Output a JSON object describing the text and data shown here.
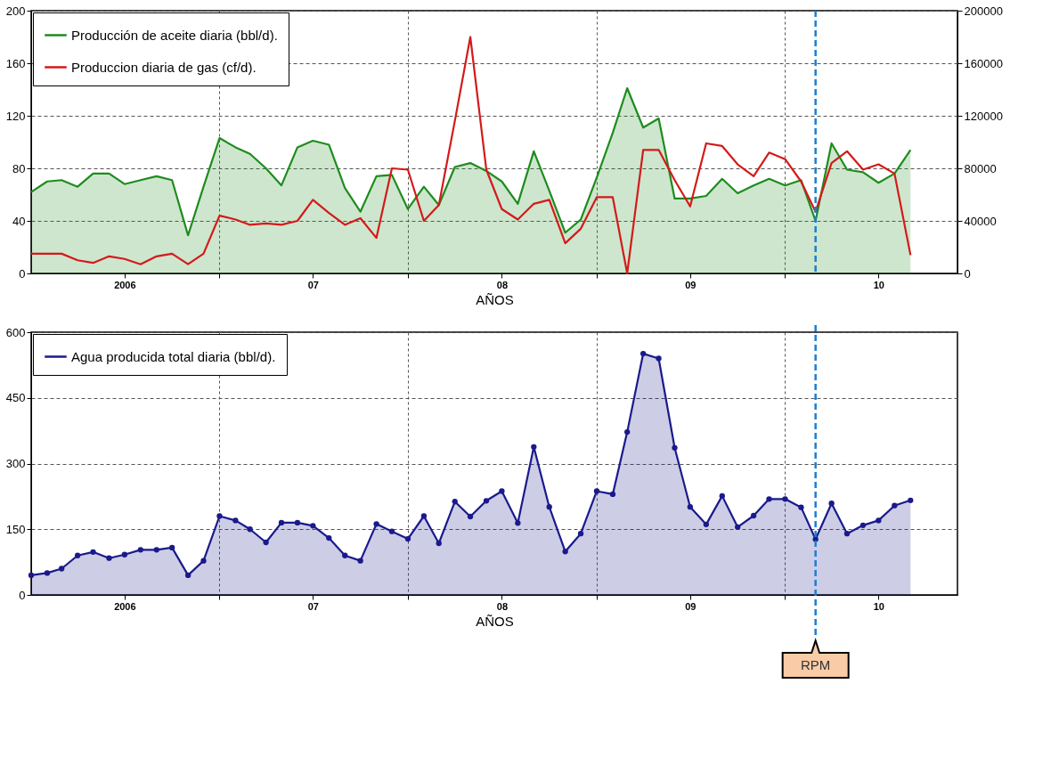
{
  "chart_data": [
    {
      "type": "area",
      "xlabel": "AÑOS",
      "legend": "top left",
      "grid": true,
      "x": [
        "2006-01",
        "2006-02",
        "2006-03",
        "2006-04",
        "2006-05",
        "2006-06",
        "2006-07",
        "2006-08",
        "2006-09",
        "2006-10",
        "2006-11",
        "2006-12",
        "2007-01",
        "2007-02",
        "2007-03",
        "2007-04",
        "2007-05",
        "2007-06",
        "2007-07",
        "2007-08",
        "2007-09",
        "2007-10",
        "2007-11",
        "2007-12",
        "2008-01",
        "2008-02",
        "2008-03",
        "2008-04",
        "2008-05",
        "2008-06",
        "2008-07",
        "2008-08",
        "2008-09",
        "2008-10",
        "2008-11",
        "2008-12",
        "2009-01",
        "2009-02",
        "2009-03",
        "2009-04",
        "2009-05",
        "2009-06",
        "2009-07",
        "2009-08",
        "2009-09",
        "2009-10",
        "2009-11",
        "2009-12",
        "2010-01",
        "2010-02",
        "2010-03",
        "2010-04",
        "2010-05",
        "2010-06",
        "2010-07",
        "2010-08",
        "2010-09"
      ],
      "xlim": [
        "2006-01",
        "2010-12"
      ],
      "xticks": [
        {
          "value": "2006-07",
          "label": "2006"
        },
        {
          "value": "2007-01",
          "label": null
        },
        {
          "value": "2007-07",
          "label": "07"
        },
        {
          "value": "2008-01",
          "label": null
        },
        {
          "value": "2008-07",
          "label": "08"
        },
        {
          "value": "2009-01",
          "label": null
        },
        {
          "value": "2009-07",
          "label": "09"
        },
        {
          "value": "2010-01",
          "label": null
        },
        {
          "value": "2010-07",
          "label": "10"
        }
      ],
      "ylim": [
        0,
        200
      ],
      "yticks": [
        0,
        40,
        80,
        120,
        160,
        200
      ],
      "y2lim": [
        0,
        200000
      ],
      "y2ticks": [
        0,
        40000,
        80000,
        120000,
        160000,
        200000
      ],
      "series": [
        {
          "name": "Producción de aceite diaria (bbl/d).",
          "color": "#1e8c1e",
          "values": [
            62,
            70,
            71,
            66,
            76,
            76,
            68,
            71,
            74,
            71,
            29,
            66,
            103,
            96,
            91,
            80,
            67,
            96,
            101,
            98,
            65,
            47,
            74,
            75,
            49,
            66,
            52,
            81,
            84,
            78,
            70,
            53,
            93,
            63,
            31,
            41,
            73,
            107,
            141,
            111,
            118,
            57,
            57,
            59,
            72,
            61,
            67,
            72,
            67,
            71,
            40,
            99,
            79,
            77,
            69,
            76,
            94
          ]
        },
        {
          "name": "Produccion diaria de gas (cf/d).",
          "type": "line",
          "axis": "y2",
          "color": "#d41a1a",
          "values": [
            15000,
            15000,
            15000,
            10000,
            8000,
            13000,
            11000,
            7000,
            13000,
            15000,
            7000,
            15000,
            44000,
            41000,
            37000,
            38000,
            37000,
            40000,
            56000,
            46000,
            37000,
            42000,
            27000,
            80000,
            79000,
            40000,
            52000,
            116000,
            180000,
            79000,
            49000,
            41000,
            53000,
            56000,
            23000,
            34000,
            58000,
            58000,
            0,
            94000,
            94000,
            71000,
            51000,
            99000,
            97000,
            83000,
            74000,
            92000,
            87000,
            70000,
            47000,
            84000,
            93000,
            79000,
            83000,
            76000,
            14000
          ]
        }
      ],
      "ref_lines": [
        {
          "axis": "x",
          "value": "2010-03",
          "label": null,
          "color": "#1a7fd4",
          "line_style": "dashed"
        }
      ]
    },
    {
      "type": "area",
      "xlabel": "AÑOS",
      "legend": "top left",
      "grid": true,
      "marker": "circle",
      "x": [
        "2006-01",
        "2006-02",
        "2006-03",
        "2006-04",
        "2006-05",
        "2006-06",
        "2006-07",
        "2006-08",
        "2006-09",
        "2006-10",
        "2006-11",
        "2006-12",
        "2007-01",
        "2007-02",
        "2007-03",
        "2007-04",
        "2007-05",
        "2007-06",
        "2007-07",
        "2007-08",
        "2007-09",
        "2007-10",
        "2007-11",
        "2007-12",
        "2008-01",
        "2008-02",
        "2008-03",
        "2008-04",
        "2008-05",
        "2008-06",
        "2008-07",
        "2008-08",
        "2008-09",
        "2008-10",
        "2008-11",
        "2008-12",
        "2009-01",
        "2009-02",
        "2009-03",
        "2009-04",
        "2009-05",
        "2009-06",
        "2009-07",
        "2009-08",
        "2009-09",
        "2009-10",
        "2009-11",
        "2009-12",
        "2010-01",
        "2010-02",
        "2010-03",
        "2010-04",
        "2010-05",
        "2010-06",
        "2010-07",
        "2010-08",
        "2010-09"
      ],
      "xlim": [
        "2006-01",
        "2010-12"
      ],
      "xticks": [
        {
          "value": "2006-07",
          "label": "2006"
        },
        {
          "value": "2007-01",
          "label": null
        },
        {
          "value": "2007-07",
          "label": "07"
        },
        {
          "value": "2008-01",
          "label": null
        },
        {
          "value": "2008-07",
          "label": "08"
        },
        {
          "value": "2009-01",
          "label": null
        },
        {
          "value": "2009-07",
          "label": "09"
        },
        {
          "value": "2010-01",
          "label": null
        },
        {
          "value": "2010-07",
          "label": "10"
        }
      ],
      "ylim": [
        0,
        600
      ],
      "yticks": [
        0,
        150,
        300,
        450,
        600
      ],
      "series": [
        {
          "name": "Agua producida total diaria (bbl/d).",
          "color": "#1a1a8c",
          "values": [
            45,
            50,
            60,
            90,
            98,
            84,
            92,
            103,
            103,
            108,
            45,
            78,
            180,
            170,
            150,
            120,
            165,
            165,
            158,
            130,
            90,
            78,
            162,
            145,
            128,
            180,
            118,
            213,
            179,
            215,
            237,
            164,
            338,
            201,
            99,
            140,
            237,
            230,
            372,
            551,
            540,
            336,
            201,
            161,
            226,
            155,
            181,
            219,
            219,
            200,
            127,
            209,
            140,
            159,
            170,
            204,
            216
          ]
        }
      ],
      "ref_lines": [
        {
          "axis": "x",
          "value": "2010-03",
          "label": "RPM",
          "color": "#1a7fd4",
          "line_style": "dashed"
        }
      ]
    }
  ]
}
